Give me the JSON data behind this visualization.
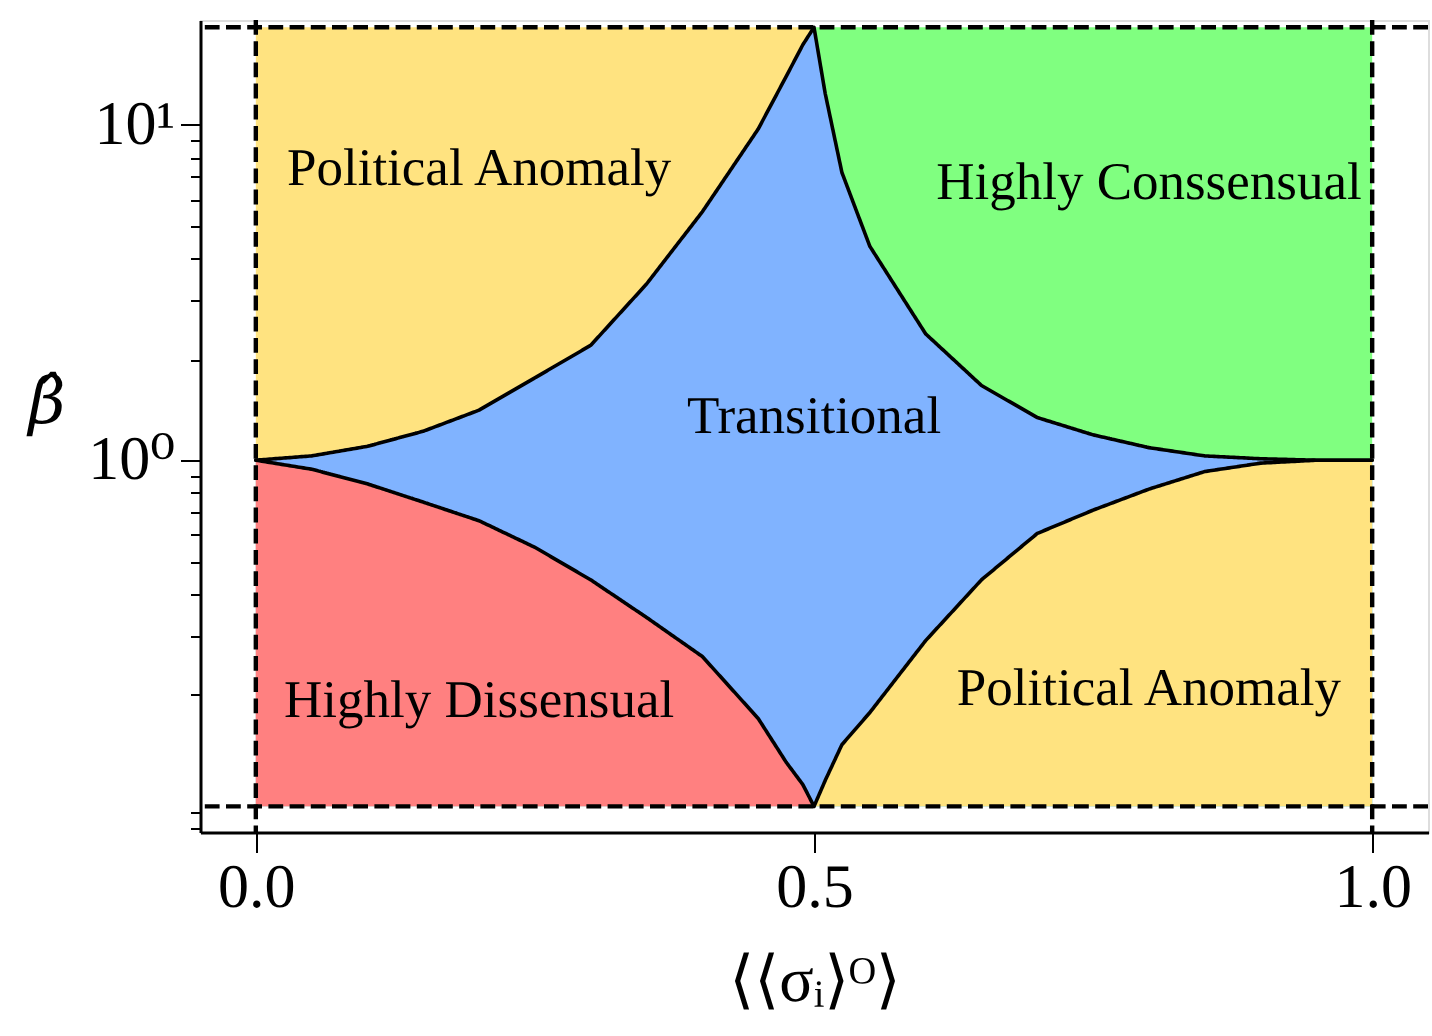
{
  "chart_data": {
    "type": "area",
    "xlabel": "⟨⟨σᵢ⟩ᴼ⟩",
    "ylabel": "β̂",
    "log": "y",
    "xlim": [
      -0.05,
      1.05
    ],
    "xticks": [
      {
        "value": 0,
        "label": "0.0"
      },
      0.5,
      {
        "value": 1,
        "label": "1.0"
      }
    ],
    "ylim": [
      0.078,
      20.5
    ],
    "yticks": [
      {
        "value": 0.08,
        "label": null
      },
      {
        "value": 0.09,
        "label": null
      },
      {
        "value": 0.2,
        "label": null
      },
      {
        "value": 0.3,
        "label": null
      },
      {
        "value": 0.4,
        "label": null
      },
      {
        "value": 0.5,
        "label": null
      },
      {
        "value": 0.6,
        "label": null
      },
      {
        "value": 0.7,
        "label": null
      },
      {
        "value": 0.8,
        "label": null
      },
      {
        "value": 0.9,
        "label": null
      },
      {
        "value": 1,
        "label": "10⁰"
      },
      {
        "value": 2,
        "label": null
      },
      {
        "value": 3,
        "label": null
      },
      {
        "value": 4,
        "label": null
      },
      {
        "value": 5,
        "label": null
      },
      {
        "value": 6,
        "label": null
      },
      {
        "value": 7,
        "label": null
      },
      {
        "value": 8,
        "label": null
      },
      {
        "value": 9,
        "label": null
      },
      {
        "value": 10,
        "label": "10¹"
      }
    ],
    "series": [
      {
        "name": "Political Anomaly",
        "color": "#ffe380",
        "x": [
          0,
          0.5
        ],
        "values": [
          19.5,
          19.5
        ]
      },
      {
        "name": "Highly Conssensual",
        "color": "#80ff80",
        "x": [
          0.5,
          1
        ],
        "values": [
          19.5,
          19.5
        ]
      },
      {
        "name": "Transitional",
        "color": "#80b3ff",
        "line_style": "solid",
        "x": [
          0,
          0.05,
          0.1,
          0.15,
          0.2,
          0.25,
          0.3,
          0.35,
          0.4,
          0.45,
          0.475,
          0.49,
          0.5,
          0.51,
          0.525,
          0.55,
          0.6,
          0.65,
          0.7,
          0.75,
          0.8,
          0.85,
          0.9,
          0.95,
          1
        ],
        "values": [
          1,
          1.03,
          1.1,
          1.22,
          1.41,
          1.76,
          2.2,
          3.35,
          5.5,
          9.7,
          13.9,
          17.3,
          19.5,
          12.4,
          7.2,
          4.34,
          2.38,
          1.67,
          1.34,
          1.19,
          1.09,
          1.03,
          1.01,
          1.0,
          1
        ]
      },
      {
        "name": "Highly Dissensual",
        "color": "#ff8080",
        "line_style": "solid",
        "x": [
          0,
          0.05,
          0.1,
          0.15,
          0.2,
          0.25,
          0.3,
          0.35,
          0.4,
          0.45,
          0.475,
          0.49,
          0.5
        ],
        "values": [
          1,
          0.94,
          0.85,
          0.75,
          0.66,
          0.55,
          0.44,
          0.34,
          0.26,
          0.17,
          0.126,
          0.108,
          0.093
        ]
      },
      {
        "name": "Political Anomaly",
        "color": "#ffe380",
        "line_style": "solid",
        "x": [
          0.5,
          0.51,
          0.525,
          0.55,
          0.6,
          0.65,
          0.7,
          0.75,
          0.8,
          0.85,
          0.9,
          0.95,
          1
        ],
        "values": [
          0.093,
          0.111,
          0.142,
          0.177,
          0.29,
          0.44,
          0.605,
          0.71,
          0.82,
          0.925,
          0.98,
          1.0,
          1
        ]
      }
    ],
    "ref_lines": [
      {
        "axis": "x",
        "value": 0,
        "color": "#000000",
        "line_style": "dashed"
      },
      {
        "axis": "x",
        "value": 1,
        "color": "#000000",
        "line_style": "dashed"
      },
      {
        "axis": "y",
        "value": 0.093,
        "color": "#000000",
        "line_style": "dashed"
      },
      {
        "axis": "y",
        "value": 19.5,
        "color": "#000000",
        "line_style": "dashed"
      }
    ]
  }
}
